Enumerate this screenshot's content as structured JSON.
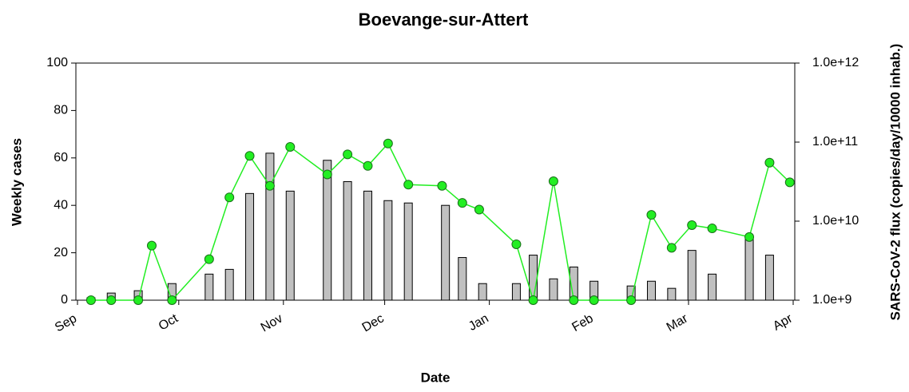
{
  "chart_data": {
    "type": "bar-line",
    "title": "Boevange-sur-Attert",
    "x_label": "Date",
    "y_label": "Weekly cases",
    "y2_label": "SARS-CoV-2 flux (copies/day/10000 inhab.)",
    "xlim": [
      0,
      212
    ],
    "xticks": [
      {
        "value": 0,
        "label": "Sep"
      },
      {
        "value": 30,
        "label": "Oct"
      },
      {
        "value": 61,
        "label": "Nov"
      },
      {
        "value": 91,
        "label": "Dec"
      },
      {
        "value": 122,
        "label": "Jan"
      },
      {
        "value": 153,
        "label": "Feb"
      },
      {
        "value": 181,
        "label": "Mar"
      },
      {
        "value": 212,
        "label": "Apr"
      }
    ],
    "ylim": [
      0,
      100
    ],
    "yticks": [
      0,
      20,
      40,
      60,
      80,
      100
    ],
    "y2lim": [
      1000000000,
      1000000000000
    ],
    "y2log": true,
    "y2ticks": [
      {
        "value": 1000000000,
        "label": "1.0e+9"
      },
      {
        "value": 10000000000,
        "label": "1.0e+10"
      },
      {
        "value": 100000000000,
        "label": "1.0e+11"
      },
      {
        "value": 1000000000000,
        "label": "1.0e+12"
      }
    ],
    "series": [
      {
        "name": "Weekly cases",
        "kind": "bar",
        "color": "#c0c0c0",
        "x": [
          4,
          10,
          18,
          28,
          39,
          45,
          51,
          57,
          63,
          74,
          80,
          86,
          92,
          98,
          109,
          114,
          120,
          130,
          135,
          141,
          147,
          153,
          164,
          170,
          176,
          182,
          188,
          199,
          205
        ],
        "values": [
          1,
          3,
          4,
          7,
          11,
          13,
          45,
          62,
          46,
          59,
          50,
          46,
          42,
          41,
          40,
          18,
          7,
          7,
          19,
          9,
          14,
          8,
          6,
          8,
          5,
          21,
          11,
          26,
          19
        ]
      },
      {
        "name": "SARS-CoV-2 flux",
        "kind": "line",
        "axis": "y2",
        "color": "#22ee22",
        "x": [
          4,
          10,
          18,
          22,
          28,
          39,
          45,
          51,
          57,
          63,
          74,
          80,
          86,
          92,
          98,
          108,
          114,
          119,
          130,
          135,
          141,
          147,
          153,
          164,
          170,
          176,
          182,
          188,
          199,
          205,
          211
        ],
        "values": [
          1000000000,
          1000000000,
          1000000000,
          4900000000,
          1000000000,
          3300000000,
          20000000000,
          67000000000,
          28000000000,
          87000000000,
          39000000000,
          70000000000,
          50000000000,
          96000000000,
          29000000000,
          28000000000,
          17000000000,
          14000000000,
          5100000000,
          1000000000,
          32000000000,
          1000000000,
          1000000000,
          1000000000,
          12000000000,
          4600000000,
          8900000000,
          8100000000,
          6300000000,
          55000000000,
          31000000000
        ]
      }
    ]
  }
}
